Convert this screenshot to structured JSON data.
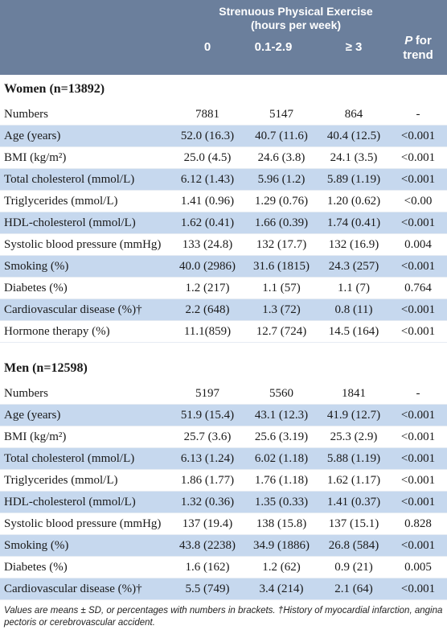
{
  "header": {
    "group_title": "Strenuous Physical Exercise\n(hours per week)",
    "group_line1": "Strenuous Physical Exercise",
    "group_line2": "(hours per week)",
    "columns": [
      "0",
      "0.1-2.9",
      "≥ 3"
    ],
    "p_label": "P",
    "p_label_suffix": "for",
    "trend_label": "trend"
  },
  "women": {
    "title": "Women (n=13892)",
    "rows": [
      {
        "label": "Numbers",
        "v0": "7881",
        "v1": "5147",
        "v2": "864",
        "p": "-",
        "shaded": false
      },
      {
        "label": "Age (years)",
        "v0": "52.0 (16.3)",
        "v1": "40.7 (11.6)",
        "v2": "40.4 (12.5)",
        "p": "<0.001",
        "shaded": true
      },
      {
        "label": "BMI (kg/m²)",
        "v0": "25.0 (4.5)",
        "v1": "24.6 (3.8)",
        "v2": "24.1 (3.5)",
        "p": "<0.001",
        "shaded": false
      },
      {
        "label": "Total cholesterol (mmol/L)",
        "v0": "6.12 (1.43)",
        "v1": "5.96 (1.2)",
        "v2": "5.89 (1.19)",
        "p": "<0.001",
        "shaded": true
      },
      {
        "label": "Triglycerides (mmol/L)",
        "v0": "1.41 (0.96)",
        "v1": "1.29 (0.76)",
        "v2": "1.20 (0.62)",
        "p": "<0.00",
        "shaded": false
      },
      {
        "label": "HDL-cholesterol (mmol/L)",
        "v0": "1.62 (0.41)",
        "v1": "1.66 (0.39)",
        "v2": "1.74 (0.41)",
        "p": "<0.001",
        "shaded": true
      },
      {
        "label": "Systolic blood pressure (mmHg)",
        "v0": "133 (24.8)",
        "v1": "132 (17.7)",
        "v2": "132 (16.9)",
        "p": "0.004",
        "shaded": false
      },
      {
        "label": "Smoking (%)",
        "v0": "40.0 (2986)",
        "v1": "31.6 (1815)",
        "v2": "24.3 (257)",
        "p": "<0.001",
        "shaded": true
      },
      {
        "label": "Diabetes (%)",
        "v0": "1.2 (217)",
        "v1": "1.1 (57)",
        "v2": "1.1 (7)",
        "p": "0.764",
        "shaded": false
      },
      {
        "label": "Cardiovascular disease (%)†",
        "v0": "2.2 (648)",
        "v1": "1.3 (72)",
        "v2": "0.8 (11)",
        "p": "<0.001",
        "shaded": true
      },
      {
        "label": "Hormone therapy (%)",
        "v0": "11.1(859)",
        "v1": "12.7 (724)",
        "v2": "14.5 (164)",
        "p": "<0.001",
        "shaded": false
      }
    ]
  },
  "men": {
    "title": "Men (n=12598)",
    "rows": [
      {
        "label": "Numbers",
        "v0": "5197",
        "v1": "5560",
        "v2": "1841",
        "p": "-",
        "shaded": false
      },
      {
        "label": "Age (years)",
        "v0": "51.9 (15.4)",
        "v1": "43.1 (12.3)",
        "v2": "41.9 (12.7)",
        "p": "<0.001",
        "shaded": true
      },
      {
        "label": "BMI (kg/m²)",
        "v0": "25.7 (3.6)",
        "v1": "25.6 (3.19)",
        "v2": "25.3 (2.9)",
        "p": "<0.001",
        "shaded": false
      },
      {
        "label": "Total cholesterol (mmol/L)",
        "v0": "6.13 (1.24)",
        "v1": "6.02 (1.18)",
        "v2": "5.88 (1.19)",
        "p": "<0.001",
        "shaded": true
      },
      {
        "label": "Triglycerides (mmol/L)",
        "v0": "1.86 (1.77)",
        "v1": "1.76 (1.18)",
        "v2": "1.62 (1.17)",
        "p": "<0.001",
        "shaded": false
      },
      {
        "label": "HDL-cholesterol (mmol/L)",
        "v0": "1.32 (0.36)",
        "v1": "1.35 (0.33)",
        "v2": "1.41 (0.37)",
        "p": "<0.001",
        "shaded": true
      },
      {
        "label": "Systolic blood pressure (mmHg)",
        "v0": "137 (19.4)",
        "v1": "138 (15.8)",
        "v2": "137 (15.1)",
        "p": "0.828",
        "shaded": false
      },
      {
        "label": "Smoking (%)",
        "v0": "43.8 (2238)",
        "v1": "34.9 (1886)",
        "v2": "26.8 (584)",
        "p": "<0.001",
        "shaded": true
      },
      {
        "label": "Diabetes (%)",
        "v0": "1.6 (162)",
        "v1": "1.2 (62)",
        "v2": "0.9 (21)",
        "p": "0.005",
        "shaded": false
      },
      {
        "label": "Cardiovascular disease (%)†",
        "v0": "5.5 (749)",
        "v1": "3.4 (214)",
        "v2": "2.1 (64)",
        "p": "<0.001",
        "shaded": true
      }
    ]
  },
  "footnote": "Values are means ±  SD, or percentages with numbers in brackets. †History of myocardial infarction, angina pectoris or cerebrovascular accident."
}
